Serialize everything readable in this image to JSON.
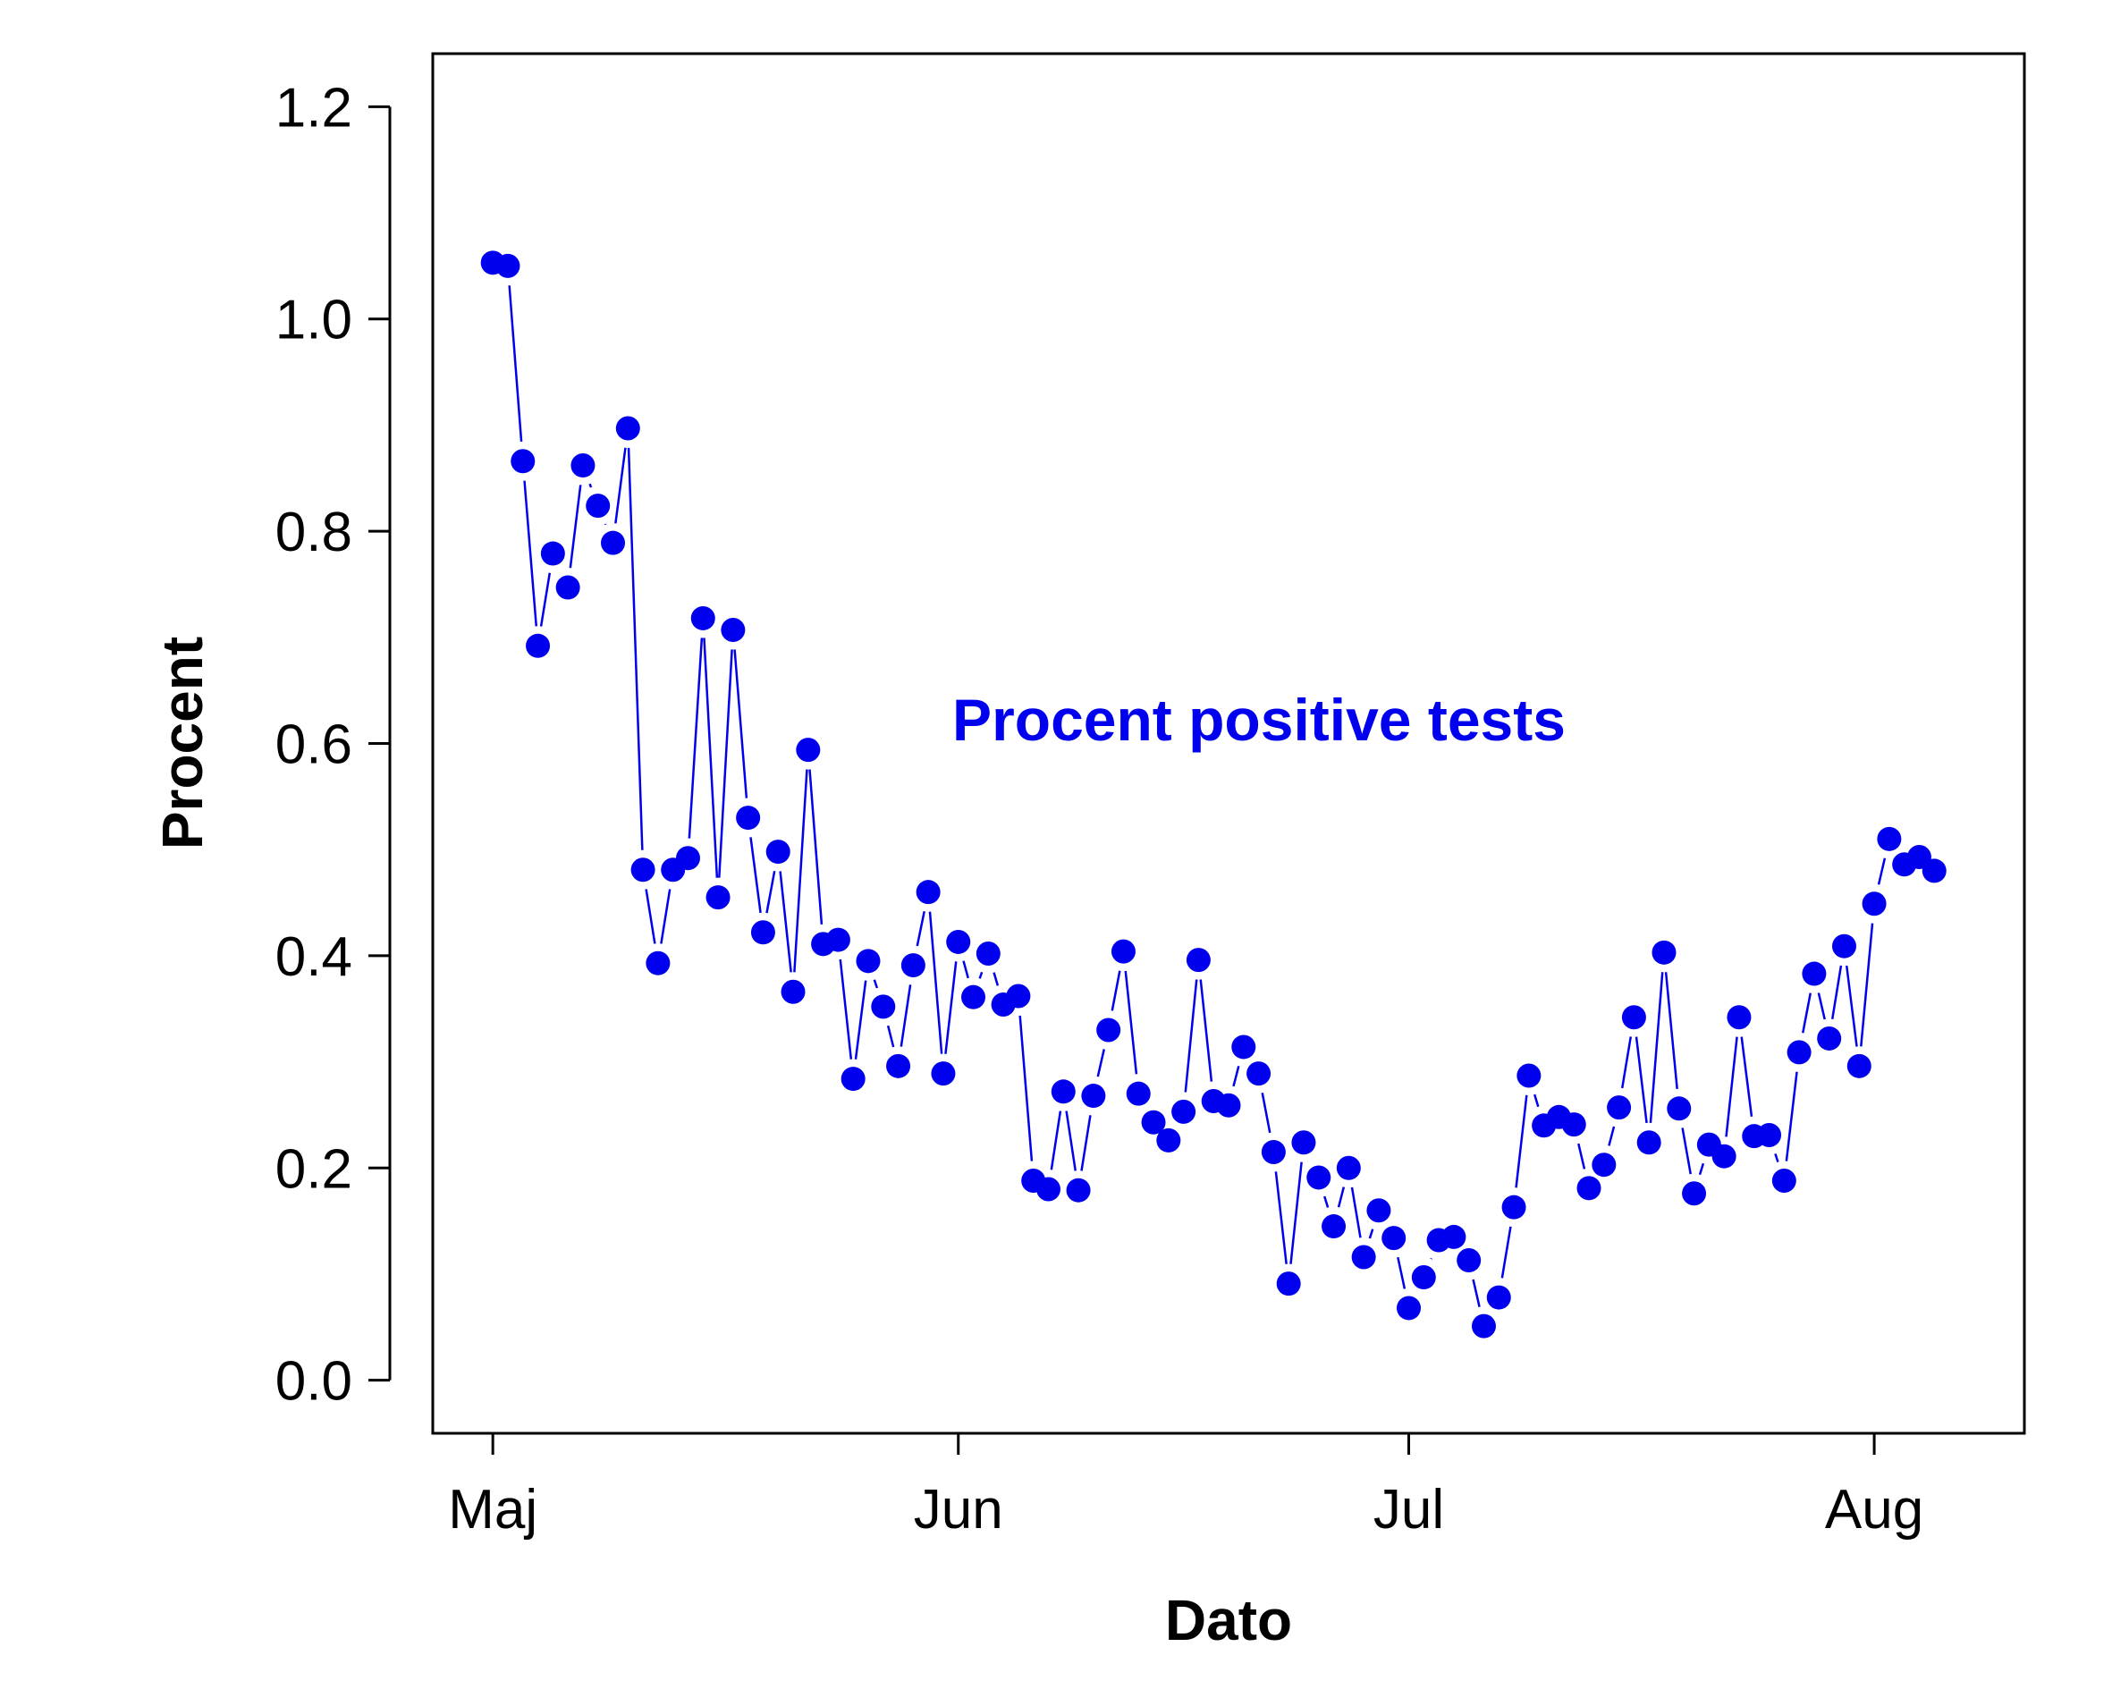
{
  "colors": {
    "series": "#0000ee",
    "axis": "#000000",
    "background": "#ffffff"
  },
  "chart_data": {
    "type": "line",
    "title": "",
    "xlabel": "Dato",
    "ylabel": "Procent",
    "annotation": "Procent positive tests",
    "ylim": [
      -0.05,
      1.25
    ],
    "yticks": [
      0.0,
      0.2,
      0.4,
      0.6,
      0.8,
      1.0,
      1.2
    ],
    "ytick_labels": [
      "0.0",
      "0.2",
      "0.4",
      "0.6",
      "0.8",
      "1.0",
      "1.2"
    ],
    "xlim": [
      "2020-04-27",
      "2020-08-11"
    ],
    "xticks": [
      "2020-05-01",
      "2020-06-01",
      "2020-07-01",
      "2020-08-01"
    ],
    "xtick_labels": [
      "Maj",
      "Jun",
      "Jul",
      "Aug"
    ],
    "grid": false,
    "legend": "none",
    "marker": "filled-circle",
    "series": [
      {
        "x": [
          "2020-05-01",
          "2020-05-02",
          "2020-05-03",
          "2020-05-04",
          "2020-05-05",
          "2020-05-06",
          "2020-05-07",
          "2020-05-08",
          "2020-05-09",
          "2020-05-10",
          "2020-05-11",
          "2020-05-12",
          "2020-05-13",
          "2020-05-14",
          "2020-05-15",
          "2020-05-16",
          "2020-05-17",
          "2020-05-18",
          "2020-05-19",
          "2020-05-20",
          "2020-05-21",
          "2020-05-22",
          "2020-05-23",
          "2020-05-24",
          "2020-05-25",
          "2020-05-26",
          "2020-05-27",
          "2020-05-28",
          "2020-05-29",
          "2020-05-30",
          "2020-05-31",
          "2020-06-01",
          "2020-06-02",
          "2020-06-03",
          "2020-06-04",
          "2020-06-05",
          "2020-06-06",
          "2020-06-07",
          "2020-06-08",
          "2020-06-09",
          "2020-06-10",
          "2020-06-11",
          "2020-06-12",
          "2020-06-13",
          "2020-06-14",
          "2020-06-15",
          "2020-06-16",
          "2020-06-17",
          "2020-06-18",
          "2020-06-19",
          "2020-06-20",
          "2020-06-21",
          "2020-06-22",
          "2020-06-23",
          "2020-06-24",
          "2020-06-25",
          "2020-06-26",
          "2020-06-27",
          "2020-06-28",
          "2020-06-29",
          "2020-06-30",
          "2020-07-01",
          "2020-07-02",
          "2020-07-03",
          "2020-07-04",
          "2020-07-05",
          "2020-07-06",
          "2020-07-07",
          "2020-07-08",
          "2020-07-09",
          "2020-07-10",
          "2020-07-11",
          "2020-07-12",
          "2020-07-13",
          "2020-07-14",
          "2020-07-15",
          "2020-07-16",
          "2020-07-17",
          "2020-07-18",
          "2020-07-19",
          "2020-07-20",
          "2020-07-21",
          "2020-07-22",
          "2020-07-23",
          "2020-07-24",
          "2020-07-25",
          "2020-07-26",
          "2020-07-27",
          "2020-07-28",
          "2020-07-29",
          "2020-07-30",
          "2020-07-31",
          "2020-08-01",
          "2020-08-02",
          "2020-08-03",
          "2020-08-04",
          "2020-08-05"
        ],
        "y": [
          1.053,
          1.05,
          0.866,
          0.692,
          0.779,
          0.747,
          0.862,
          0.824,
          0.789,
          0.897,
          0.481,
          0.393,
          0.481,
          0.492,
          0.718,
          0.455,
          0.707,
          0.53,
          0.422,
          0.498,
          0.366,
          0.594,
          0.411,
          0.415,
          0.284,
          0.395,
          0.352,
          0.296,
          0.391,
          0.46,
          0.289,
          0.413,
          0.361,
          0.402,
          0.354,
          0.362,
          0.188,
          0.18,
          0.272,
          0.179,
          0.268,
          0.33,
          0.404,
          0.27,
          0.243,
          0.226,
          0.253,
          0.396,
          0.263,
          0.259,
          0.314,
          0.289,
          0.215,
          0.091,
          0.224,
          0.191,
          0.145,
          0.2,
          0.116,
          0.16,
          0.134,
          0.068,
          0.097,
          0.132,
          0.135,
          0.113,
          0.051,
          0.078,
          0.163,
          0.287,
          0.24,
          0.248,
          0.241,
          0.181,
          0.203,
          0.257,
          0.342,
          0.224,
          0.403,
          0.256,
          0.176,
          0.222,
          0.211,
          0.342,
          0.23,
          0.231,
          0.188,
          0.309,
          0.383,
          0.322,
          0.409,
          0.296,
          0.449,
          0.51,
          0.486,
          0.493,
          0.48
        ]
      }
    ]
  }
}
